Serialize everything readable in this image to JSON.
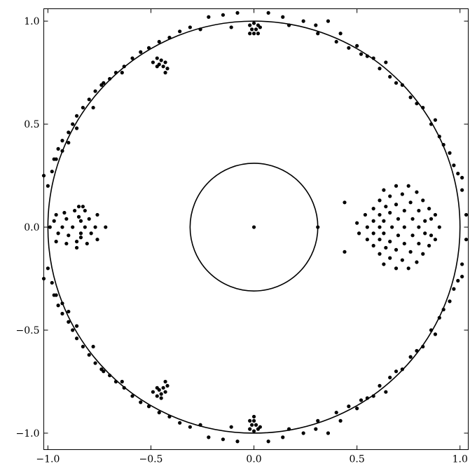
{
  "chart_data": {
    "type": "scatter",
    "title": "",
    "xlabel": "",
    "ylabel": "",
    "xlim": [
      -1.02,
      1.04
    ],
    "ylim": [
      -1.08,
      1.06
    ],
    "grid": false,
    "legend": "none",
    "aspect": "equal",
    "x_ticks": [
      {
        "value": -1.0,
        "label": "−1.0"
      },
      {
        "value": -0.5,
        "label": "−0.5"
      },
      {
        "value": 0.0,
        "label": "0.0"
      },
      {
        "value": 0.5,
        "label": "0.5"
      },
      {
        "value": 1.0,
        "label": "1.0"
      }
    ],
    "y_ticks": [
      {
        "value": 1.0,
        "label": "1.0"
      },
      {
        "value": 0.5,
        "label": "0.5"
      },
      {
        "value": 0.0,
        "label": "0.0"
      },
      {
        "value": -0.5,
        "label": "−0.5"
      },
      {
        "value": -1.0,
        "label": "−1.0"
      }
    ],
    "circles": [
      {
        "cx": 0.0,
        "cy": 0.0,
        "r": 1.0
      },
      {
        "cx": 0.0,
        "cy": 0.0,
        "r": 0.31
      }
    ],
    "points": [
      [
        0.0,
        0.0
      ],
      [
        0.31,
        0.0
      ],
      [
        -0.99,
        0.0
      ],
      [
        -0.97,
        0.03
      ],
      [
        -0.96,
        0.06
      ],
      [
        -0.95,
        -0.03
      ],
      [
        -0.96,
        -0.07
      ],
      [
        -0.93,
        0.0
      ],
      [
        -0.91,
        0.04
      ],
      [
        -0.9,
        -0.04
      ],
      [
        -0.92,
        0.07
      ],
      [
        -0.91,
        -0.08
      ],
      [
        -0.88,
        0.0
      ],
      [
        -0.87,
        0.08
      ],
      [
        -0.86,
        -0.1
      ],
      [
        -0.85,
        0.05
      ],
      [
        -0.84,
        -0.05
      ],
      [
        -0.82,
        0.0
      ],
      [
        -0.82,
        0.08
      ],
      [
        -0.81,
        -0.08
      ],
      [
        -0.8,
        0.04
      ],
      [
        -0.79,
        -0.03
      ],
      [
        -0.77,
        0.0
      ],
      [
        -0.76,
        0.06
      ],
      [
        -0.76,
        -0.06
      ],
      [
        -0.72,
        0.0
      ],
      [
        -0.84,
        0.03
      ],
      [
        -0.84,
        -0.03
      ],
      [
        -0.83,
        0.1
      ],
      [
        -0.85,
        0.1
      ],
      [
        -0.86,
        -0.07
      ],
      [
        -0.49,
        0.8
      ],
      [
        -0.47,
        0.82
      ],
      [
        -0.46,
        0.79
      ],
      [
        -0.45,
        0.81
      ],
      [
        -0.44,
        0.78
      ],
      [
        -0.43,
        0.8
      ],
      [
        -0.42,
        0.77
      ],
      [
        -0.43,
        0.75
      ],
      [
        -0.47,
        0.78
      ],
      [
        -0.49,
        -0.8
      ],
      [
        -0.47,
        -0.82
      ],
      [
        -0.46,
        -0.79
      ],
      [
        -0.45,
        -0.81
      ],
      [
        -0.44,
        -0.78
      ],
      [
        -0.43,
        -0.8
      ],
      [
        -0.42,
        -0.77
      ],
      [
        -0.43,
        -0.75
      ],
      [
        -0.47,
        -0.78
      ],
      [
        -0.45,
        -0.83
      ],
      [
        -0.02,
        0.98
      ],
      [
        0.0,
        0.99
      ],
      [
        0.02,
        0.98
      ],
      [
        -0.01,
        0.96
      ],
      [
        0.01,
        0.96
      ],
      [
        -0.02,
        0.94
      ],
      [
        0.0,
        0.94
      ],
      [
        0.02,
        0.94
      ],
      [
        0.03,
        0.97
      ],
      [
        -0.02,
        -0.98
      ],
      [
        0.0,
        -0.99
      ],
      [
        0.02,
        -0.98
      ],
      [
        -0.01,
        -0.96
      ],
      [
        0.01,
        -0.96
      ],
      [
        -0.02,
        -0.94
      ],
      [
        0.0,
        -0.94
      ],
      [
        0.03,
        -0.97
      ],
      [
        0.0,
        -0.92
      ],
      [
        0.44,
        0.12
      ],
      [
        0.44,
        -0.12
      ],
      [
        0.5,
        0.02
      ],
      [
        0.51,
        -0.03
      ],
      [
        0.54,
        0.06
      ],
      [
        0.55,
        -0.06
      ],
      [
        0.55,
        0.0
      ],
      [
        0.58,
        0.09
      ],
      [
        0.58,
        -0.09
      ],
      [
        0.58,
        0.03
      ],
      [
        0.58,
        -0.03
      ],
      [
        0.61,
        0.13
      ],
      [
        0.61,
        -0.13
      ],
      [
        0.61,
        0.06
      ],
      [
        0.61,
        -0.06
      ],
      [
        0.61,
        0.0
      ],
      [
        0.63,
        0.18
      ],
      [
        0.63,
        -0.18
      ],
      [
        0.63,
        0.03
      ],
      [
        0.63,
        -0.03
      ],
      [
        0.64,
        0.1
      ],
      [
        0.64,
        -0.1
      ],
      [
        0.66,
        0.15
      ],
      [
        0.66,
        -0.15
      ],
      [
        0.66,
        0.07
      ],
      [
        0.66,
        -0.07
      ],
      [
        0.67,
        0.0
      ],
      [
        0.69,
        0.2
      ],
      [
        0.69,
        -0.2
      ],
      [
        0.69,
        0.11
      ],
      [
        0.69,
        -0.11
      ],
      [
        0.7,
        0.04
      ],
      [
        0.7,
        -0.04
      ],
      [
        0.72,
        0.16
      ],
      [
        0.72,
        -0.16
      ],
      [
        0.73,
        0.08
      ],
      [
        0.73,
        -0.08
      ],
      [
        0.73,
        0.0
      ],
      [
        0.75,
        0.2
      ],
      [
        0.75,
        -0.2
      ],
      [
        0.76,
        0.12
      ],
      [
        0.76,
        -0.12
      ],
      [
        0.77,
        0.04
      ],
      [
        0.77,
        -0.04
      ],
      [
        0.79,
        0.17
      ],
      [
        0.79,
        -0.17
      ],
      [
        0.8,
        0.08
      ],
      [
        0.8,
        -0.08
      ],
      [
        0.8,
        0.0
      ],
      [
        0.82,
        0.13
      ],
      [
        0.82,
        -0.13
      ],
      [
        0.83,
        0.03
      ],
      [
        0.83,
        -0.03
      ],
      [
        0.85,
        0.09
      ],
      [
        0.85,
        -0.09
      ],
      [
        0.86,
        0.04
      ],
      [
        0.86,
        -0.04
      ],
      [
        0.88,
        0.06
      ],
      [
        0.88,
        -0.06
      ],
      [
        0.9,
        0.0
      ],
      [
        -0.26,
        0.96
      ],
      [
        -0.22,
        1.02
      ],
      [
        -0.15,
        1.03
      ],
      [
        -0.11,
        0.97
      ],
      [
        -0.08,
        1.04
      ],
      [
        0.07,
        1.04
      ],
      [
        0.14,
        1.02
      ],
      [
        0.17,
        0.98
      ],
      [
        0.24,
        1.0
      ],
      [
        0.3,
        0.98
      ],
      [
        0.31,
        0.94
      ],
      [
        0.36,
        1.0
      ],
      [
        0.4,
        0.9
      ],
      [
        0.42,
        0.94
      ],
      [
        0.46,
        0.87
      ],
      [
        0.5,
        0.88
      ],
      [
        0.52,
        0.84
      ],
      [
        0.55,
        0.83
      ],
      [
        0.58,
        0.82
      ],
      [
        0.61,
        0.77
      ],
      [
        0.64,
        0.8
      ],
      [
        0.66,
        0.73
      ],
      [
        0.69,
        0.7
      ],
      [
        0.72,
        0.69
      ],
      [
        0.76,
        0.63
      ],
      [
        0.79,
        0.6
      ],
      [
        0.82,
        0.58
      ],
      [
        0.86,
        0.5
      ],
      [
        0.88,
        0.52
      ],
      [
        0.9,
        0.44
      ],
      [
        0.92,
        0.4
      ],
      [
        0.95,
        0.36
      ],
      [
        0.97,
        0.3
      ],
      [
        0.99,
        0.26
      ],
      [
        1.01,
        0.18
      ],
      [
        1.03,
        0.06
      ],
      [
        1.01,
        0.24
      ],
      [
        -0.26,
        -0.96
      ],
      [
        -0.22,
        -1.02
      ],
      [
        -0.15,
        -1.03
      ],
      [
        -0.11,
        -0.97
      ],
      [
        -0.08,
        -1.04
      ],
      [
        0.07,
        -1.04
      ],
      [
        0.14,
        -1.02
      ],
      [
        0.17,
        -0.98
      ],
      [
        0.24,
        -1.0
      ],
      [
        0.3,
        -0.98
      ],
      [
        0.31,
        -0.94
      ],
      [
        0.36,
        -1.0
      ],
      [
        0.4,
        -0.9
      ],
      [
        0.42,
        -0.94
      ],
      [
        0.46,
        -0.87
      ],
      [
        0.5,
        -0.88
      ],
      [
        0.52,
        -0.84
      ],
      [
        0.55,
        -0.83
      ],
      [
        0.58,
        -0.82
      ],
      [
        0.61,
        -0.77
      ],
      [
        0.64,
        -0.8
      ],
      [
        0.66,
        -0.73
      ],
      [
        0.69,
        -0.7
      ],
      [
        0.72,
        -0.69
      ],
      [
        0.76,
        -0.63
      ],
      [
        0.79,
        -0.6
      ],
      [
        0.82,
        -0.58
      ],
      [
        0.86,
        -0.5
      ],
      [
        0.88,
        -0.52
      ],
      [
        0.9,
        -0.44
      ],
      [
        0.92,
        -0.4
      ],
      [
        0.95,
        -0.36
      ],
      [
        0.97,
        -0.3
      ],
      [
        0.99,
        -0.26
      ],
      [
        1.01,
        -0.18
      ],
      [
        1.03,
        -0.06
      ],
      [
        1.01,
        -0.24
      ],
      [
        -1.0,
        0.2
      ],
      [
        -0.98,
        0.27
      ],
      [
        -0.96,
        0.33
      ],
      [
        -0.95,
        0.38
      ],
      [
        -0.93,
        0.42
      ],
      [
        -0.9,
        0.46
      ],
      [
        -0.88,
        0.5
      ],
      [
        -0.86,
        0.54
      ],
      [
        -0.83,
        0.58
      ],
      [
        -0.8,
        0.62
      ],
      [
        -0.77,
        0.66
      ],
      [
        -0.74,
        0.69
      ],
      [
        -0.7,
        0.72
      ],
      [
        -0.67,
        0.75
      ],
      [
        -0.63,
        0.78
      ],
      [
        -0.59,
        0.82
      ],
      [
        -0.55,
        0.85
      ],
      [
        -0.51,
        0.87
      ],
      [
        -0.46,
        0.9
      ],
      [
        -0.41,
        0.92
      ],
      [
        -0.36,
        0.95
      ],
      [
        -0.31,
        0.97
      ],
      [
        -1.02,
        0.25
      ],
      [
        -0.97,
        0.33
      ],
      [
        -0.93,
        0.37
      ],
      [
        -0.9,
        0.41
      ],
      [
        -0.86,
        0.48
      ],
      [
        -0.78,
        0.58
      ],
      [
        -0.73,
        0.7
      ],
      [
        -0.64,
        0.75
      ],
      [
        -1.0,
        -0.2
      ],
      [
        -0.98,
        -0.27
      ],
      [
        -0.96,
        -0.33
      ],
      [
        -0.95,
        -0.38
      ],
      [
        -0.93,
        -0.42
      ],
      [
        -0.9,
        -0.46
      ],
      [
        -0.88,
        -0.5
      ],
      [
        -0.86,
        -0.54
      ],
      [
        -0.83,
        -0.58
      ],
      [
        -0.8,
        -0.62
      ],
      [
        -0.77,
        -0.66
      ],
      [
        -0.74,
        -0.69
      ],
      [
        -0.7,
        -0.72
      ],
      [
        -0.67,
        -0.75
      ],
      [
        -0.63,
        -0.78
      ],
      [
        -0.59,
        -0.82
      ],
      [
        -0.55,
        -0.85
      ],
      [
        -0.51,
        -0.87
      ],
      [
        -0.46,
        -0.9
      ],
      [
        -0.41,
        -0.92
      ],
      [
        -0.36,
        -0.95
      ],
      [
        -0.31,
        -0.97
      ],
      [
        -1.02,
        -0.25
      ],
      [
        -0.97,
        -0.33
      ],
      [
        -0.93,
        -0.37
      ],
      [
        -0.9,
        -0.41
      ],
      [
        -0.86,
        -0.48
      ],
      [
        -0.78,
        -0.58
      ],
      [
        -0.73,
        -0.7
      ],
      [
        -0.64,
        -0.75
      ]
    ]
  }
}
